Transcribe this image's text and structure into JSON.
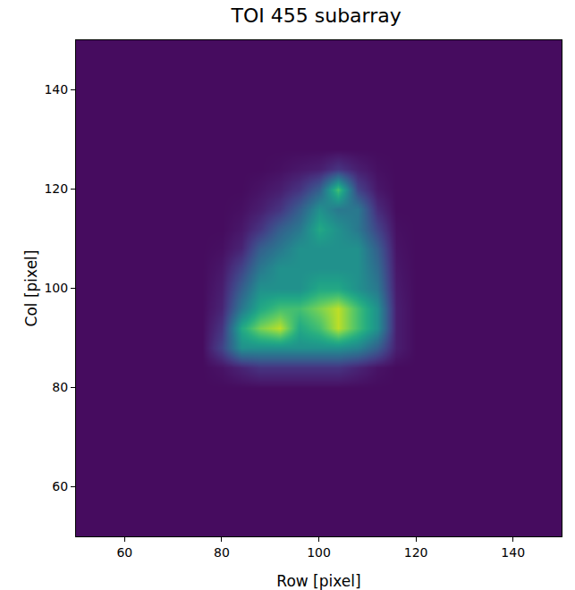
{
  "chart_data": {
    "type": "heatmap",
    "title": "TOI 455 subarray",
    "x_label": "Row [pixel]",
    "y_label": "Col [pixel]",
    "xlim": [
      50,
      150
    ],
    "ylim": [
      50,
      150
    ],
    "xticks": [
      60,
      80,
      100,
      120,
      140
    ],
    "yticks": [
      60,
      80,
      100,
      120,
      140
    ],
    "color": "Viridis",
    "zlim": [
      0,
      10
    ],
    "grid": false,
    "x": [
      52,
      56,
      60,
      64,
      68,
      72,
      76,
      80,
      84,
      88,
      92,
      96,
      100,
      104,
      108,
      112,
      116,
      120,
      124,
      128,
      132,
      136,
      140,
      144,
      148
    ],
    "y": [
      52,
      56,
      60,
      64,
      68,
      72,
      76,
      80,
      84,
      88,
      92,
      96,
      100,
      104,
      108,
      112,
      116,
      120,
      124,
      128,
      132,
      136,
      140,
      144,
      148
    ],
    "cells": [
      [
        0.3,
        0.3,
        0.3,
        0.3,
        0.3,
        0.3,
        0.3,
        0.3,
        0.3,
        0.3,
        0.3,
        0.3,
        0.3,
        0.3,
        0.3,
        0.3,
        0.3,
        0.3,
        0.3,
        0.3,
        0.3,
        0.3,
        0.3,
        0.3,
        0.3
      ],
      [
        0.3,
        0.3,
        0.3,
        0.3,
        0.3,
        0.3,
        0.3,
        0.3,
        0.3,
        0.3,
        0.3,
        0.3,
        0.3,
        0.3,
        0.3,
        0.3,
        0.3,
        0.3,
        0.3,
        0.3,
        0.3,
        0.3,
        0.3,
        0.3,
        0.3
      ],
      [
        0.3,
        0.3,
        0.3,
        0.3,
        0.3,
        0.3,
        0.3,
        0.3,
        0.3,
        0.3,
        0.3,
        0.3,
        0.3,
        0.3,
        0.3,
        0.3,
        0.3,
        0.3,
        0.3,
        0.3,
        0.3,
        0.3,
        0.3,
        0.3,
        0.3
      ],
      [
        0.3,
        0.3,
        0.3,
        0.3,
        0.3,
        0.3,
        0.3,
        0.3,
        0.3,
        0.3,
        0.3,
        0.3,
        0.3,
        0.3,
        0.3,
        0.3,
        0.3,
        0.3,
        0.3,
        0.3,
        0.3,
        0.3,
        0.3,
        0.3,
        0.3
      ],
      [
        0.3,
        0.3,
        0.3,
        0.3,
        0.3,
        0.3,
        0.3,
        0.3,
        0.3,
        0.3,
        0.3,
        0.3,
        0.3,
        0.3,
        0.3,
        0.3,
        0.3,
        0.3,
        0.3,
        0.3,
        0.3,
        0.3,
        0.3,
        0.3,
        0.3
      ],
      [
        0.3,
        0.3,
        0.3,
        0.3,
        0.3,
        0.3,
        0.3,
        0.3,
        0.3,
        0.3,
        0.3,
        0.3,
        0.3,
        0.3,
        0.3,
        0.3,
        0.3,
        0.3,
        0.3,
        0.3,
        0.3,
        0.3,
        0.3,
        0.3,
        0.3
      ],
      [
        0.3,
        0.3,
        0.3,
        0.3,
        0.3,
        0.3,
        0.3,
        0.3,
        0.3,
        0.3,
        0.3,
        0.3,
        0.3,
        0.3,
        0.3,
        0.3,
        0.3,
        0.3,
        0.3,
        0.3,
        0.3,
        0.3,
        0.3,
        0.3,
        0.3
      ],
      [
        0.3,
        0.3,
        0.3,
        0.3,
        0.3,
        0.3,
        0.3,
        0.3,
        0.3,
        0.3,
        0.3,
        0.3,
        0.3,
        0.3,
        0.3,
        0.3,
        0.3,
        0.3,
        0.3,
        0.3,
        0.3,
        0.3,
        0.3,
        0.3,
        0.3
      ],
      [
        0.3,
        0.3,
        0.3,
        0.3,
        0.3,
        0.3,
        0.3,
        0.5,
        1,
        1.5,
        1.5,
        1.5,
        1.5,
        1.5,
        1,
        0.5,
        0.3,
        0.3,
        0.3,
        0.3,
        0.3,
        0.3,
        0.3,
        0.3,
        0.3
      ],
      [
        0.3,
        0.3,
        0.3,
        0.3,
        0.3,
        0.3,
        0.3,
        2,
        5,
        5,
        5,
        5,
        5,
        5,
        4.5,
        3,
        0.8,
        0.3,
        0.3,
        0.3,
        0.3,
        0.3,
        0.3,
        0.3,
        0.3
      ],
      [
        0.3,
        0.3,
        0.3,
        0.3,
        0.3,
        0.3,
        0.3,
        1.5,
        6,
        8,
        9,
        6,
        7,
        9,
        7,
        5,
        0.8,
        0.3,
        0.3,
        0.3,
        0.3,
        0.3,
        0.3,
        0.3,
        0.3
      ],
      [
        0.3,
        0.3,
        0.3,
        0.3,
        0.3,
        0.3,
        0.3,
        1,
        4,
        6,
        7,
        7,
        8,
        9,
        7,
        5,
        0.8,
        0.3,
        0.3,
        0.3,
        0.3,
        0.3,
        0.3,
        0.3,
        0.3
      ],
      [
        0.3,
        0.3,
        0.3,
        0.3,
        0.3,
        0.3,
        0.3,
        0.8,
        3,
        5,
        5,
        5,
        6,
        6,
        5,
        4,
        0.7,
        0.3,
        0.3,
        0.3,
        0.3,
        0.3,
        0.3,
        0.3,
        0.3
      ],
      [
        0.3,
        0.3,
        0.3,
        0.3,
        0.3,
        0.3,
        0.3,
        0.6,
        2,
        4,
        5,
        5,
        5,
        5,
        5,
        3.5,
        0.6,
        0.3,
        0.3,
        0.3,
        0.3,
        0.3,
        0.3,
        0.3,
        0.3
      ],
      [
        0.3,
        0.3,
        0.3,
        0.3,
        0.3,
        0.3,
        0.3,
        0.4,
        1,
        3,
        4,
        5,
        5,
        5,
        5,
        3,
        0.5,
        0.3,
        0.3,
        0.3,
        0.3,
        0.3,
        0.3,
        0.3,
        0.3
      ],
      [
        0.3,
        0.3,
        0.3,
        0.3,
        0.3,
        0.3,
        0.3,
        0.3,
        0.6,
        1.5,
        3,
        4,
        6,
        5,
        4,
        2,
        0.4,
        0.3,
        0.3,
        0.3,
        0.3,
        0.3,
        0.3,
        0.3,
        0.3
      ],
      [
        0.3,
        0.3,
        0.3,
        0.3,
        0.3,
        0.3,
        0.3,
        0.3,
        0.4,
        0.8,
        1.5,
        3,
        5,
        4,
        4,
        1.2,
        0.3,
        0.3,
        0.3,
        0.3,
        0.3,
        0.3,
        0.3,
        0.3,
        0.3
      ],
      [
        0.3,
        0.3,
        0.3,
        0.3,
        0.3,
        0.3,
        0.3,
        0.3,
        0.3,
        0.5,
        0.8,
        1.5,
        3,
        7,
        2,
        0.6,
        0.3,
        0.3,
        0.3,
        0.3,
        0.3,
        0.3,
        0.3,
        0.3,
        0.3
      ],
      [
        0.3,
        0.3,
        0.3,
        0.3,
        0.3,
        0.3,
        0.3,
        0.3,
        0.3,
        0.3,
        0.4,
        0.6,
        0.8,
        1.5,
        0.8,
        0.4,
        0.3,
        0.3,
        0.3,
        0.3,
        0.3,
        0.3,
        0.3,
        0.3,
        0.3
      ],
      [
        0.3,
        0.3,
        0.3,
        0.3,
        0.3,
        0.3,
        0.3,
        0.3,
        0.3,
        0.3,
        0.3,
        0.3,
        0.3,
        0.3,
        0.3,
        0.3,
        0.3,
        0.3,
        0.3,
        0.3,
        0.3,
        0.3,
        0.3,
        0.3,
        0.3
      ],
      [
        0.3,
        0.3,
        0.3,
        0.3,
        0.3,
        0.3,
        0.3,
        0.3,
        0.3,
        0.3,
        0.3,
        0.3,
        0.3,
        0.3,
        0.3,
        0.3,
        0.3,
        0.3,
        0.3,
        0.3,
        0.3,
        0.3,
        0.3,
        0.3,
        0.3
      ],
      [
        0.3,
        0.3,
        0.3,
        0.3,
        0.3,
        0.3,
        0.3,
        0.3,
        0.3,
        0.3,
        0.3,
        0.3,
        0.3,
        0.3,
        0.3,
        0.3,
        0.3,
        0.3,
        0.3,
        0.3,
        0.3,
        0.3,
        0.3,
        0.3,
        0.3
      ],
      [
        0.3,
        0.3,
        0.3,
        0.3,
        0.3,
        0.3,
        0.3,
        0.3,
        0.3,
        0.3,
        0.3,
        0.3,
        0.3,
        0.3,
        0.3,
        0.3,
        0.3,
        0.3,
        0.3,
        0.3,
        0.3,
        0.3,
        0.3,
        0.3,
        0.3
      ],
      [
        0.3,
        0.3,
        0.3,
        0.3,
        0.3,
        0.3,
        0.3,
        0.3,
        0.3,
        0.3,
        0.3,
        0.3,
        0.3,
        0.3,
        0.3,
        0.3,
        0.3,
        0.3,
        0.3,
        0.3,
        0.3,
        0.3,
        0.3,
        0.3,
        0.3
      ],
      [
        0.3,
        0.3,
        0.3,
        0.3,
        0.3,
        0.3,
        0.3,
        0.3,
        0.3,
        0.3,
        0.3,
        0.3,
        0.3,
        0.3,
        0.3,
        0.3,
        0.3,
        0.3,
        0.3,
        0.3,
        0.3,
        0.3,
        0.3,
        0.3,
        0.3
      ]
    ]
  }
}
